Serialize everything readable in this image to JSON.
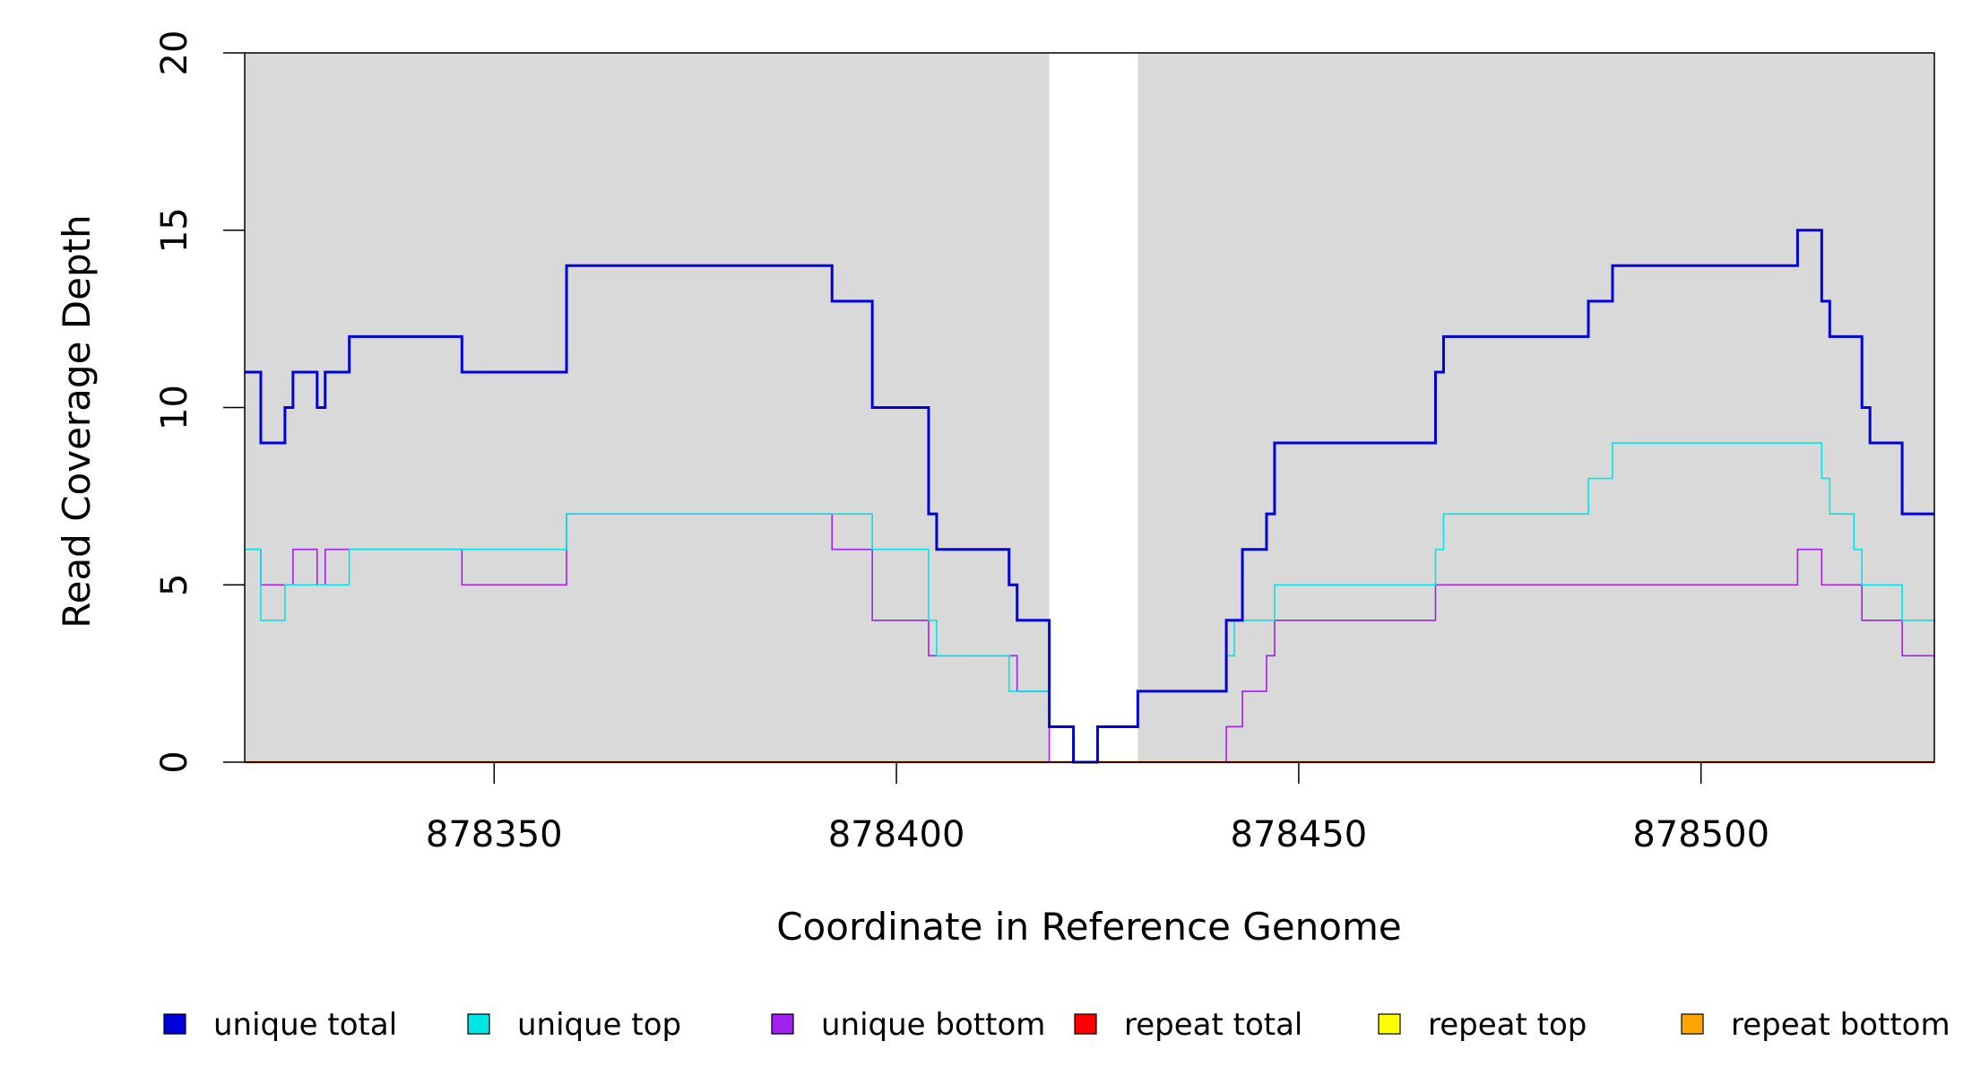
{
  "chart_data": {
    "type": "line",
    "title": "",
    "xlabel": "Coordinate in Reference Genome",
    "ylabel": "Read Coverage Depth",
    "xlim": [
      878319,
      878529
    ],
    "ylim": [
      0,
      20
    ],
    "x_ticks": [
      878350,
      878400,
      878450,
      878500
    ],
    "x_tick_labels": [
      "878350",
      "878400",
      "878450",
      "878500"
    ],
    "y_ticks": [
      0,
      5,
      10,
      15,
      20
    ],
    "y_tick_labels": [
      "0",
      "5",
      "10",
      "15",
      "20"
    ],
    "background_color": "#d9d9d9",
    "low_coverage_region": [
      878419,
      878430
    ],
    "legend_position": "bottom",
    "series": [
      {
        "name": "unique total",
        "color": "#0000dd",
        "step_x": [
          878319,
          878321,
          878324,
          878325,
          878328,
          878329,
          878330,
          878332,
          878346,
          878359,
          878392,
          878397,
          878404,
          878405,
          878414,
          878415,
          878419,
          878422,
          878425,
          878430,
          878441,
          878443,
          878446,
          878447,
          878467,
          878468,
          878486,
          878489,
          878512,
          878515,
          878516,
          878520,
          878521,
          878525,
          878529
        ],
        "step_y": [
          11,
          9,
          10,
          11,
          10,
          11,
          11,
          12,
          11,
          14,
          13,
          10,
          7,
          6,
          5,
          4,
          1,
          0,
          1,
          2,
          4,
          6,
          7,
          9,
          11,
          12,
          13,
          14,
          15,
          13,
          12,
          10,
          9,
          7,
          7
        ]
      },
      {
        "name": "unique top",
        "color": "#00e5e5",
        "step_x": [
          878319,
          878321,
          878324,
          878328,
          878329,
          878330,
          878332,
          878346,
          878359,
          878392,
          878397,
          878404,
          878405,
          878414,
          878415,
          878419,
          878422,
          878425,
          878430,
          878441,
          878442,
          878447,
          878467,
          878468,
          878486,
          878489,
          878515,
          878516,
          878519,
          878520,
          878525,
          878529
        ],
        "step_y": [
          6,
          4,
          5,
          5,
          5,
          5,
          6,
          6,
          7,
          7,
          6,
          4,
          3,
          2,
          2,
          1,
          0,
          1,
          2,
          3,
          4,
          5,
          6,
          7,
          8,
          9,
          8,
          7,
          6,
          5,
          4,
          4
        ]
      },
      {
        "name": "unique bottom",
        "color": "#a020f0",
        "step_x": [
          878319,
          878321,
          878325,
          878328,
          878329,
          878332,
          878346,
          878359,
          878392,
          878397,
          878404,
          878415,
          878419,
          878430,
          878441,
          878443,
          878446,
          878447,
          878467,
          878512,
          878515,
          878520,
          878525,
          878529
        ],
        "step_y": [
          6,
          5,
          6,
          5,
          6,
          6,
          5,
          7,
          6,
          4,
          3,
          2,
          0,
          0,
          1,
          2,
          3,
          4,
          5,
          6,
          5,
          4,
          3,
          3
        ]
      },
      {
        "name": "repeat total",
        "color": "#ff0000",
        "step_x": [
          878319,
          878529
        ],
        "step_y": [
          0,
          0
        ]
      },
      {
        "name": "repeat top",
        "color": "#ffff00",
        "step_x": [
          878319,
          878529
        ],
        "step_y": [
          0,
          0
        ]
      },
      {
        "name": "repeat bottom",
        "color": "#ffa500",
        "step_x": [
          878319,
          878529
        ],
        "step_y": [
          0,
          0
        ]
      }
    ]
  }
}
